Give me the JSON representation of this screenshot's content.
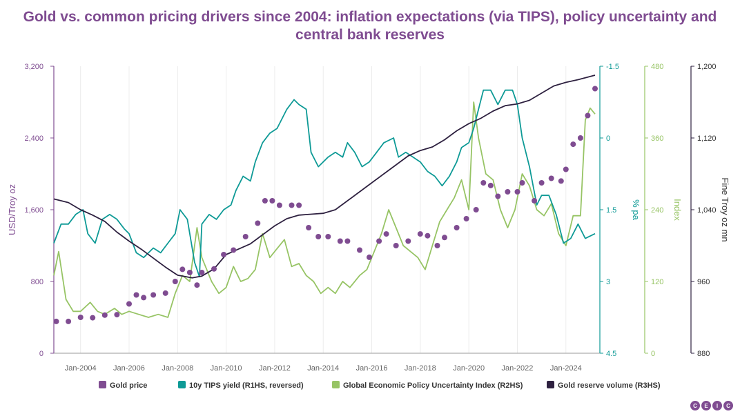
{
  "page": {
    "title_line1": "Gold vs. common pricing drivers since 2004: inflation expectations (via TIPS), policy uncertainty and",
    "title_line2": "central bank reserves",
    "logo_letters": [
      "C",
      "E",
      "I",
      "C"
    ]
  },
  "chart_data": {
    "type": "line",
    "title": "Gold vs. common pricing drivers since 2004: inflation expectations (via TIPS), policy uncertainty and central bank reserves",
    "x_range": [
      2002.9,
      2025.4
    ],
    "x_ticks": [
      {
        "x": 2004,
        "label": "Jan-2004"
      },
      {
        "x": 2006,
        "label": "Jan-2006"
      },
      {
        "x": 2008,
        "label": "Jan-2008"
      },
      {
        "x": 2010,
        "label": "Jan-2010"
      },
      {
        "x": 2012,
        "label": "Jan-2012"
      },
      {
        "x": 2014,
        "label": "Jan-2014"
      },
      {
        "x": 2016,
        "label": "Jan-2016"
      },
      {
        "x": 2018,
        "label": "Jan-2018"
      },
      {
        "x": 2020,
        "label": "Jan-2020"
      },
      {
        "x": 2022,
        "label": "Jan-2022"
      },
      {
        "x": 2024,
        "label": "Jan-2024"
      }
    ],
    "axes": {
      "left": {
        "label": "USD/Troy oz",
        "range": [
          0,
          3200
        ],
        "ticks": [
          "0",
          "800",
          "1,600",
          "2,400",
          "3,200"
        ],
        "color": "#7f4c91"
      },
      "r1": {
        "label": "% pa",
        "range": [
          -1.5,
          4.5
        ],
        "reversed": true,
        "ticks": [
          "-1.5",
          "0",
          "1.5",
          "3",
          "4.5"
        ],
        "color": "#0e9a96"
      },
      "r2": {
        "label": "Index",
        "range": [
          0,
          480
        ],
        "ticks": [
          "0",
          "120",
          "240",
          "360",
          "480"
        ],
        "color": "#97c465"
      },
      "r3": {
        "label": "Fine Troy oz mn",
        "range": [
          880,
          1200
        ],
        "ticks": [
          "880",
          "960",
          "1,040",
          "1,120",
          "1,200"
        ],
        "color": "#2e2140"
      }
    },
    "series": [
      {
        "name": "Gold price",
        "axis": "left",
        "style": "dots",
        "color": "#7f4c91",
        "points": [
          [
            2003.0,
            355
          ],
          [
            2003.5,
            355
          ],
          [
            2004.0,
            400
          ],
          [
            2004.5,
            395
          ],
          [
            2005.0,
            425
          ],
          [
            2005.5,
            430
          ],
          [
            2006.0,
            550
          ],
          [
            2006.3,
            650
          ],
          [
            2006.6,
            620
          ],
          [
            2007.0,
            650
          ],
          [
            2007.5,
            670
          ],
          [
            2007.9,
            800
          ],
          [
            2008.2,
            935
          ],
          [
            2008.5,
            900
          ],
          [
            2008.8,
            760
          ],
          [
            2009.0,
            900
          ],
          [
            2009.5,
            940
          ],
          [
            2009.9,
            1100
          ],
          [
            2010.3,
            1150
          ],
          [
            2010.8,
            1300
          ],
          [
            2011.3,
            1450
          ],
          [
            2011.6,
            1700
          ],
          [
            2011.9,
            1700
          ],
          [
            2012.2,
            1650
          ],
          [
            2012.7,
            1650
          ],
          [
            2013.0,
            1650
          ],
          [
            2013.4,
            1400
          ],
          [
            2013.8,
            1300
          ],
          [
            2014.2,
            1300
          ],
          [
            2014.7,
            1250
          ],
          [
            2015.0,
            1250
          ],
          [
            2015.5,
            1150
          ],
          [
            2015.9,
            1070
          ],
          [
            2016.3,
            1250
          ],
          [
            2016.6,
            1330
          ],
          [
            2017.0,
            1200
          ],
          [
            2017.5,
            1250
          ],
          [
            2018.0,
            1330
          ],
          [
            2018.3,
            1310
          ],
          [
            2018.7,
            1200
          ],
          [
            2019.0,
            1290
          ],
          [
            2019.5,
            1400
          ],
          [
            2019.9,
            1500
          ],
          [
            2020.3,
            1600
          ],
          [
            2020.6,
            1900
          ],
          [
            2020.9,
            1870
          ],
          [
            2021.2,
            1750
          ],
          [
            2021.6,
            1800
          ],
          [
            2022.0,
            1800
          ],
          [
            2022.2,
            1900
          ],
          [
            2022.7,
            1700
          ],
          [
            2023.0,
            1900
          ],
          [
            2023.4,
            1950
          ],
          [
            2023.8,
            1920
          ],
          [
            2024.0,
            2050
          ],
          [
            2024.3,
            2330
          ],
          [
            2024.6,
            2400
          ],
          [
            2024.9,
            2650
          ],
          [
            2025.2,
            2950
          ]
        ]
      },
      {
        "name": "10y TIPS yield (R1HS, reversed)",
        "axis": "r1",
        "style": "line",
        "color": "#0e9a96",
        "points": [
          [
            2002.9,
            2.2
          ],
          [
            2003.2,
            1.8
          ],
          [
            2003.5,
            1.8
          ],
          [
            2003.8,
            1.6
          ],
          [
            2004.1,
            1.5
          ],
          [
            2004.3,
            2.0
          ],
          [
            2004.6,
            2.2
          ],
          [
            2004.9,
            1.7
          ],
          [
            2005.2,
            1.6
          ],
          [
            2005.5,
            1.7
          ],
          [
            2005.8,
            1.9
          ],
          [
            2006.0,
            2.0
          ],
          [
            2006.3,
            2.4
          ],
          [
            2006.6,
            2.5
          ],
          [
            2007.0,
            2.3
          ],
          [
            2007.3,
            2.4
          ],
          [
            2007.6,
            2.2
          ],
          [
            2007.9,
            2.0
          ],
          [
            2008.1,
            1.5
          ],
          [
            2008.4,
            1.7
          ],
          [
            2008.7,
            2.6
          ],
          [
            2008.9,
            2.9
          ],
          [
            2009.0,
            1.8
          ],
          [
            2009.3,
            1.6
          ],
          [
            2009.6,
            1.7
          ],
          [
            2009.9,
            1.5
          ],
          [
            2010.2,
            1.4
          ],
          [
            2010.4,
            1.1
          ],
          [
            2010.7,
            0.8
          ],
          [
            2011.0,
            0.9
          ],
          [
            2011.2,
            0.5
          ],
          [
            2011.5,
            0.1
          ],
          [
            2011.8,
            -0.1
          ],
          [
            2012.1,
            -0.2
          ],
          [
            2012.5,
            -0.6
          ],
          [
            2012.8,
            -0.8
          ],
          [
            2013.0,
            -0.7
          ],
          [
            2013.3,
            -0.6
          ],
          [
            2013.5,
            0.3
          ],
          [
            2013.8,
            0.6
          ],
          [
            2014.2,
            0.4
          ],
          [
            2014.5,
            0.3
          ],
          [
            2014.8,
            0.4
          ],
          [
            2015.0,
            0.1
          ],
          [
            2015.3,
            0.3
          ],
          [
            2015.6,
            0.6
          ],
          [
            2015.9,
            0.5
          ],
          [
            2016.2,
            0.3
          ],
          [
            2016.5,
            0.1
          ],
          [
            2016.9,
            0.0
          ],
          [
            2017.1,
            0.4
          ],
          [
            2017.4,
            0.3
          ],
          [
            2017.7,
            0.4
          ],
          [
            2018.0,
            0.5
          ],
          [
            2018.3,
            0.7
          ],
          [
            2018.6,
            0.8
          ],
          [
            2018.9,
            1.0
          ],
          [
            2019.2,
            0.8
          ],
          [
            2019.5,
            0.5
          ],
          [
            2019.7,
            0.2
          ],
          [
            2020.0,
            0.1
          ],
          [
            2020.2,
            -0.2
          ],
          [
            2020.4,
            -0.6
          ],
          [
            2020.6,
            -1.0
          ],
          [
            2020.9,
            -1.0
          ],
          [
            2021.2,
            -0.7
          ],
          [
            2021.5,
            -1.0
          ],
          [
            2021.8,
            -1.0
          ],
          [
            2022.0,
            -0.7
          ],
          [
            2022.2,
            0.0
          ],
          [
            2022.5,
            0.6
          ],
          [
            2022.8,
            1.4
          ],
          [
            2023.0,
            1.2
          ],
          [
            2023.3,
            1.2
          ],
          [
            2023.6,
            1.6
          ],
          [
            2023.9,
            2.2
          ],
          [
            2024.2,
            2.1
          ],
          [
            2024.5,
            1.8
          ],
          [
            2024.8,
            2.1
          ],
          [
            2025.2,
            2.0
          ]
        ]
      },
      {
        "name": "Global Economic Policy Uncertainty Index (R2HS)",
        "axis": "r2",
        "style": "line",
        "color": "#97c465",
        "points": [
          [
            2002.9,
            130
          ],
          [
            2003.1,
            170
          ],
          [
            2003.4,
            90
          ],
          [
            2003.7,
            70
          ],
          [
            2004.0,
            70
          ],
          [
            2004.4,
            85
          ],
          [
            2004.7,
            70
          ],
          [
            2005.0,
            65
          ],
          [
            2005.4,
            75
          ],
          [
            2005.7,
            65
          ],
          [
            2006.0,
            70
          ],
          [
            2006.4,
            65
          ],
          [
            2006.8,
            60
          ],
          [
            2007.2,
            65
          ],
          [
            2007.6,
            60
          ],
          [
            2007.9,
            100
          ],
          [
            2008.2,
            130
          ],
          [
            2008.5,
            120
          ],
          [
            2008.8,
            210
          ],
          [
            2009.0,
            160
          ],
          [
            2009.4,
            120
          ],
          [
            2009.7,
            100
          ],
          [
            2010.0,
            110
          ],
          [
            2010.3,
            145
          ],
          [
            2010.6,
            120
          ],
          [
            2010.9,
            125
          ],
          [
            2011.2,
            140
          ],
          [
            2011.5,
            200
          ],
          [
            2011.8,
            160
          ],
          [
            2012.1,
            175
          ],
          [
            2012.4,
            190
          ],
          [
            2012.7,
            145
          ],
          [
            2013.0,
            150
          ],
          [
            2013.3,
            130
          ],
          [
            2013.6,
            120
          ],
          [
            2013.9,
            100
          ],
          [
            2014.2,
            110
          ],
          [
            2014.5,
            100
          ],
          [
            2014.8,
            120
          ],
          [
            2015.1,
            110
          ],
          [
            2015.5,
            130
          ],
          [
            2015.8,
            140
          ],
          [
            2016.1,
            170
          ],
          [
            2016.4,
            200
          ],
          [
            2016.7,
            240
          ],
          [
            2017.0,
            210
          ],
          [
            2017.3,
            180
          ],
          [
            2017.6,
            170
          ],
          [
            2017.9,
            160
          ],
          [
            2018.2,
            140
          ],
          [
            2018.5,
            180
          ],
          [
            2018.8,
            220
          ],
          [
            2019.1,
            240
          ],
          [
            2019.4,
            260
          ],
          [
            2019.7,
            290
          ],
          [
            2020.0,
            240
          ],
          [
            2020.2,
            420
          ],
          [
            2020.4,
            360
          ],
          [
            2020.7,
            300
          ],
          [
            2021.0,
            290
          ],
          [
            2021.3,
            240
          ],
          [
            2021.6,
            210
          ],
          [
            2021.9,
            240
          ],
          [
            2022.2,
            300
          ],
          [
            2022.5,
            280
          ],
          [
            2022.8,
            240
          ],
          [
            2023.1,
            230
          ],
          [
            2023.4,
            250
          ],
          [
            2023.7,
            200
          ],
          [
            2024.0,
            180
          ],
          [
            2024.3,
            230
          ],
          [
            2024.6,
            230
          ],
          [
            2024.8,
            390
          ],
          [
            2025.0,
            410
          ],
          [
            2025.2,
            400
          ]
        ]
      },
      {
        "name": "Gold reserve volume (R3HS)",
        "axis": "r3",
        "style": "line",
        "color": "#2e2140",
        "points": [
          [
            2002.9,
            1052
          ],
          [
            2003.5,
            1048
          ],
          [
            2004.0,
            1040
          ],
          [
            2004.5,
            1034
          ],
          [
            2005.0,
            1027
          ],
          [
            2005.5,
            1015
          ],
          [
            2006.0,
            1005
          ],
          [
            2006.5,
            996
          ],
          [
            2007.0,
            986
          ],
          [
            2007.5,
            976
          ],
          [
            2008.0,
            967
          ],
          [
            2008.6,
            964
          ],
          [
            2009.0,
            966
          ],
          [
            2009.5,
            974
          ],
          [
            2010.0,
            990
          ],
          [
            2010.5,
            996
          ],
          [
            2011.0,
            1002
          ],
          [
            2011.5,
            1012
          ],
          [
            2012.0,
            1022
          ],
          [
            2012.5,
            1030
          ],
          [
            2013.0,
            1034
          ],
          [
            2013.5,
            1035
          ],
          [
            2014.0,
            1036
          ],
          [
            2014.5,
            1040
          ],
          [
            2015.0,
            1050
          ],
          [
            2015.5,
            1060
          ],
          [
            2016.0,
            1070
          ],
          [
            2016.5,
            1080
          ],
          [
            2017.0,
            1090
          ],
          [
            2017.5,
            1100
          ],
          [
            2018.0,
            1106
          ],
          [
            2018.5,
            1110
          ],
          [
            2019.0,
            1118
          ],
          [
            2019.5,
            1128
          ],
          [
            2020.0,
            1136
          ],
          [
            2020.5,
            1142
          ],
          [
            2021.0,
            1150
          ],
          [
            2021.5,
            1156
          ],
          [
            2022.0,
            1158
          ],
          [
            2022.5,
            1162
          ],
          [
            2023.0,
            1170
          ],
          [
            2023.5,
            1178
          ],
          [
            2024.0,
            1182
          ],
          [
            2024.5,
            1185
          ],
          [
            2025.2,
            1190
          ]
        ]
      }
    ],
    "legend": {
      "placement": "bottom"
    }
  }
}
